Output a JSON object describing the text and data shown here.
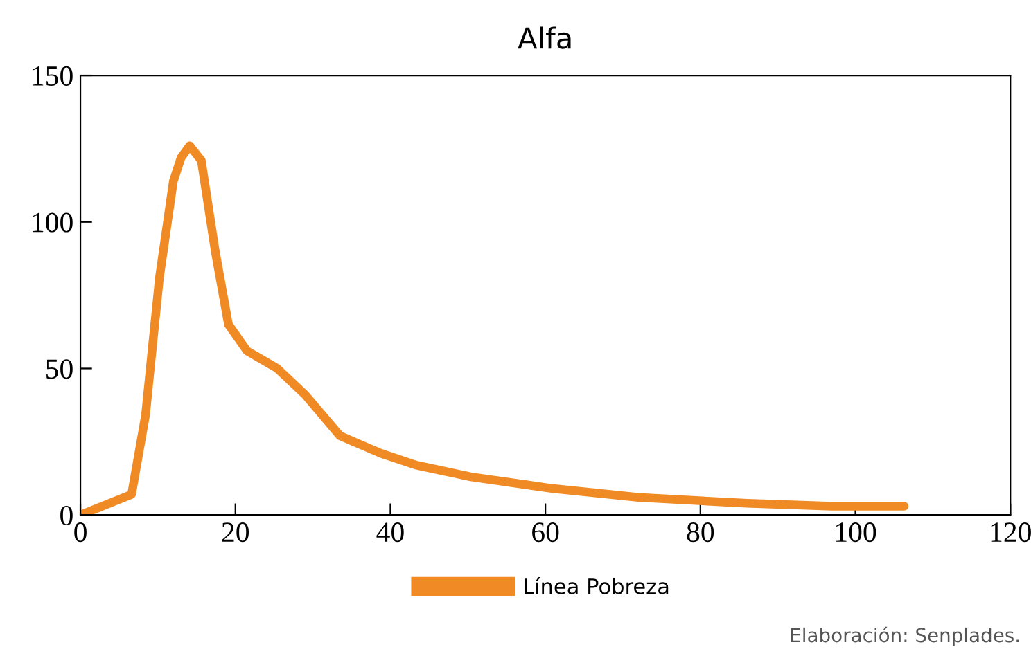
{
  "chart_data": {
    "type": "line",
    "title": "Alfa",
    "x": [
      0,
      6.6,
      8.4,
      10.2,
      12,
      13,
      14.1,
      15.6,
      17.4,
      19.1,
      21.5,
      25.4,
      29,
      33.5,
      38.8,
      43.3,
      50.4,
      61,
      72,
      86,
      97,
      106.3
    ],
    "series": [
      {
        "name": "Línea Pobreza",
        "color": "#f08a24",
        "values": [
          0,
          7,
          34,
          81,
          114,
          122,
          126,
          121,
          90,
          65,
          56,
          50,
          41,
          27,
          21,
          17,
          13,
          9,
          6,
          4,
          3,
          3
        ]
      }
    ],
    "xlim": [
      0,
      120
    ],
    "xticks": [
      0,
      20,
      40,
      60,
      80,
      100,
      120
    ],
    "ylim": [
      0,
      150
    ],
    "yticks": [
      0,
      50,
      100,
      150
    ],
    "grid": false,
    "legend": "bottom",
    "marker": "none",
    "line_style": "solid",
    "annotations": [
      "Elaboración: Senplades."
    ]
  }
}
